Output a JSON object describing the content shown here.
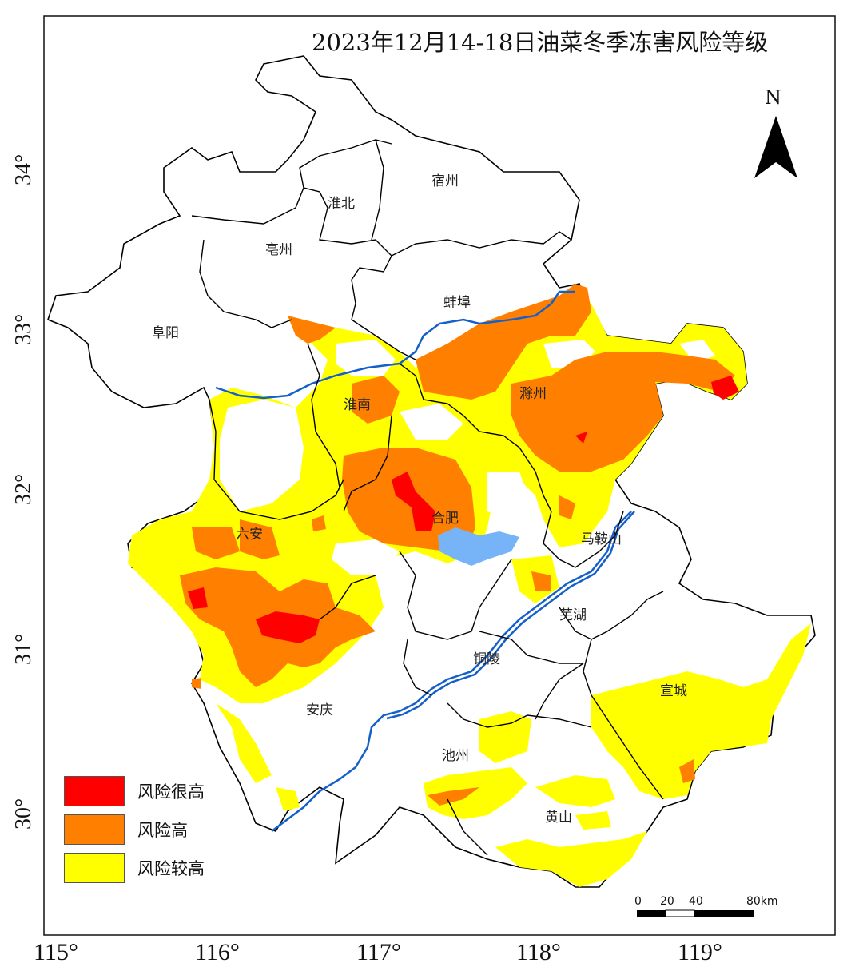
{
  "title": "2023年12月14-18日油菜冬季冻害风险等级",
  "north_arrow": {
    "label": "N"
  },
  "cities": [
    {
      "id": "suzhou",
      "name": "宿州"
    },
    {
      "id": "huaibei",
      "name": "淮北"
    },
    {
      "id": "bozhou",
      "name": "亳州"
    },
    {
      "id": "bengbu",
      "name": "蚌埠"
    },
    {
      "id": "fuyang",
      "name": "阜阳"
    },
    {
      "id": "huainan",
      "name": "淮南"
    },
    {
      "id": "chuzhou",
      "name": "滁州"
    },
    {
      "id": "hefei",
      "name": "合肥"
    },
    {
      "id": "luan",
      "name": "六安"
    },
    {
      "id": "maanshan",
      "name": "马鞍山"
    },
    {
      "id": "wuhu",
      "name": "芜湖"
    },
    {
      "id": "tongling",
      "name": "铜陵"
    },
    {
      "id": "xuancheng",
      "name": "宣城"
    },
    {
      "id": "anqing",
      "name": "安庆"
    },
    {
      "id": "chizhou",
      "name": "池州"
    },
    {
      "id": "huangshan",
      "name": "黄山"
    }
  ],
  "axes": {
    "longitude_labels": [
      "115°",
      "116°",
      "117°",
      "118°",
      "119°"
    ],
    "latitude_labels": [
      "34°",
      "33°",
      "32°",
      "31°",
      "30°"
    ]
  },
  "legend": [
    {
      "label": "风险很高",
      "color": "#ff0000"
    },
    {
      "label": "风险高",
      "color": "#ff8000"
    },
    {
      "label": "风险较高",
      "color": "#ffff00"
    }
  ],
  "scale_bar": {
    "ticks": [
      "0",
      "20",
      "40",
      "80km"
    ]
  },
  "colors": {
    "very_high": "#ff0000",
    "high": "#ff8000",
    "higher": "#ffff00",
    "lake": "#76b4f7",
    "river": "#1560c8",
    "boundary": "#000000"
  }
}
